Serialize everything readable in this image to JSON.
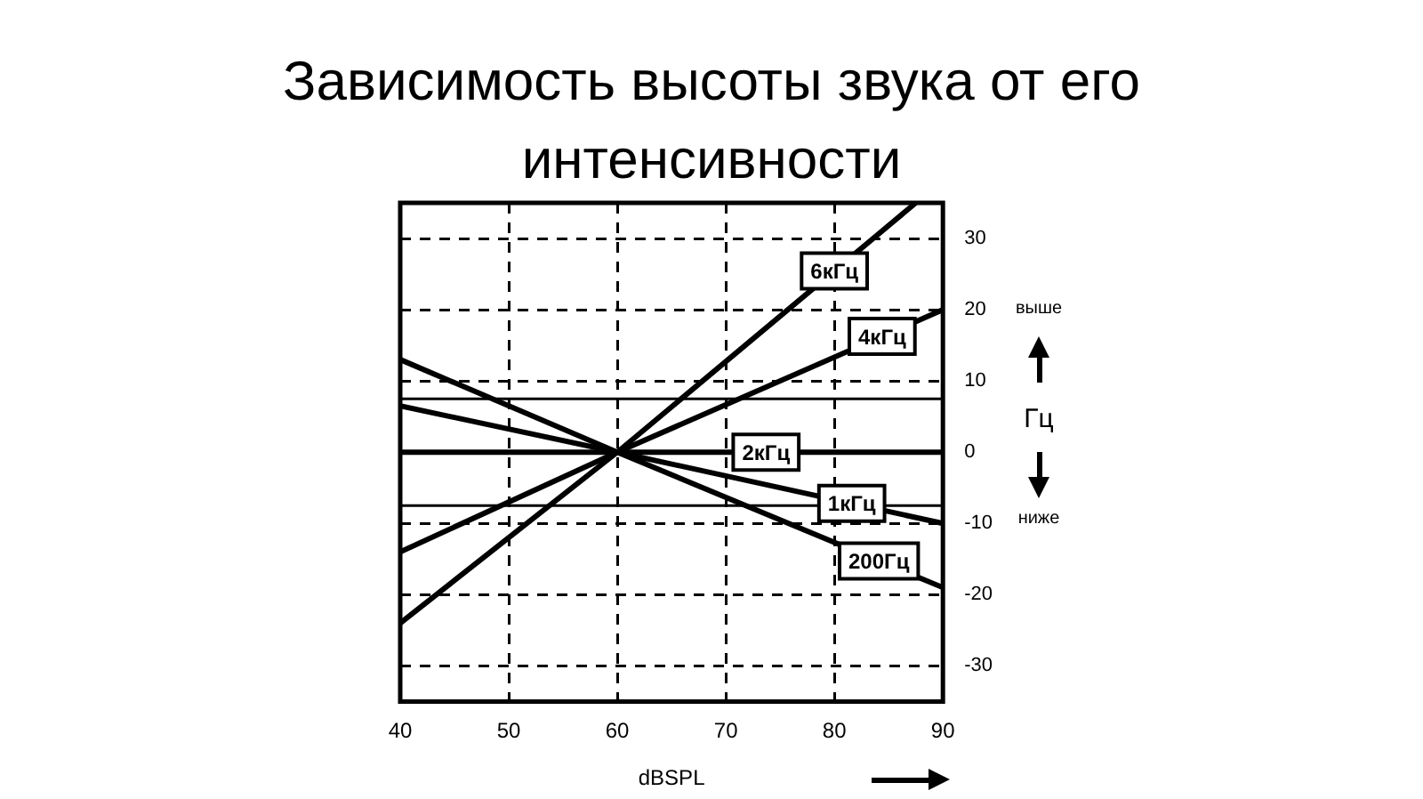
{
  "chart_data": {
    "type": "line",
    "title": "Зависимость высоты звука от его интенсивности",
    "xlabel": "dBSPL",
    "ylabel": "Гц",
    "annotations": [
      "выше",
      "ниже"
    ],
    "xlim": [
      40,
      90
    ],
    "xticks": [
      40,
      50,
      60,
      70,
      80,
      90
    ],
    "ylim": [
      -35,
      35
    ],
    "yticks": [
      30,
      20,
      10,
      0,
      -10,
      -20,
      -30
    ],
    "grid": true,
    "legend": false,
    "marker": "none",
    "line_style": "solid",
    "ref_lines": [
      {
        "axis": "y",
        "value": 7.5,
        "color": "#000000"
      },
      {
        "axis": "y",
        "value": -7.5,
        "color": "#000000"
      }
    ],
    "series": [
      {
        "name": "6кГц",
        "color": "#000000",
        "x": [
          40,
          60,
          87.5
        ],
        "values": [
          -24,
          0,
          35
        ]
      },
      {
        "name": "4кГц",
        "color": "#000000",
        "x": [
          40,
          60,
          90
        ],
        "values": [
          -14,
          0,
          20
        ]
      },
      {
        "name": "2кГц",
        "color": "#000000",
        "x": [
          40,
          90
        ],
        "values": [
          0,
          0
        ]
      },
      {
        "name": "1кГц",
        "color": "#000000",
        "x": [
          40,
          60,
          90
        ],
        "values": [
          6.5,
          0,
          -10
        ]
      },
      {
        "name": "200Гц",
        "color": "#000000",
        "x": [
          40,
          60,
          90
        ],
        "values": [
          13,
          0,
          -19
        ]
      }
    ]
  }
}
